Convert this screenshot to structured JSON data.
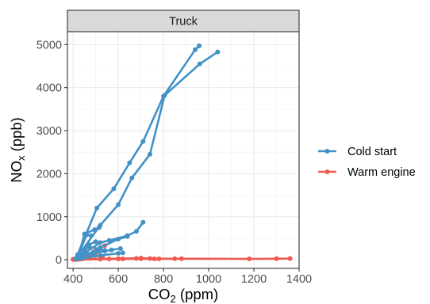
{
  "chart_data": {
    "type": "line",
    "panel": "Truck",
    "xlabel": {
      "main": "CO",
      "sub": "2",
      "rest": " (ppm)"
    },
    "ylabel": {
      "main": "NO",
      "sub": "x",
      "rest": " (ppb)"
    },
    "xlim": [
      375,
      1400
    ],
    "ylim": [
      -200,
      5300
    ],
    "xticks": [
      400,
      600,
      800,
      1000,
      1200,
      1400
    ],
    "yticks": [
      0,
      1000,
      2000,
      3000,
      4000,
      5000
    ],
    "grid": true,
    "legend_position": "right",
    "series": [
      {
        "name": "Cold start",
        "color": "#4292c6",
        "lines": [
          [
            [
              420,
              120
            ],
            [
              505,
              1200
            ],
            [
              580,
              1650
            ],
            [
              650,
              2250
            ],
            [
              710,
              2750
            ],
            [
              800,
              3800
            ],
            [
              940,
              4880
            ],
            [
              958,
              4970
            ]
          ],
          [
            [
              430,
              150
            ],
            [
              520,
              800
            ],
            [
              600,
              1280
            ],
            [
              660,
              1900
            ],
            [
              740,
              2450
            ],
            [
              805,
              3820
            ],
            [
              960,
              4550
            ],
            [
              1040,
              4830
            ]
          ],
          [
            [
              425,
              100
            ],
            [
              450,
              600
            ],
            [
              495,
              700
            ],
            [
              515,
              750
            ]
          ],
          [
            [
              420,
              70
            ],
            [
              460,
              580
            ],
            [
              480,
              560
            ]
          ],
          [
            [
              430,
              80
            ],
            [
              520,
              400
            ],
            [
              560,
              450
            ],
            [
              640,
              560
            ],
            [
              680,
              660
            ],
            [
              710,
              870
            ]
          ],
          [
            [
              440,
              60
            ],
            [
              520,
              280
            ],
            [
              600,
              480
            ],
            [
              640,
              540
            ]
          ],
          [
            [
              415,
              40
            ],
            [
              470,
              350
            ],
            [
              500,
              420
            ]
          ],
          [
            [
              430,
              50
            ],
            [
              490,
              150
            ],
            [
              540,
              200
            ],
            [
              570,
              230
            ],
            [
              610,
              260
            ]
          ],
          [
            [
              410,
              20
            ],
            [
              450,
              220
            ],
            [
              470,
              300
            ],
            [
              520,
              250
            ]
          ],
          [
            [
              420,
              30
            ],
            [
              460,
              140
            ],
            [
              500,
              180
            ],
            [
              540,
              220
            ]
          ],
          [
            [
              440,
              30
            ],
            [
              520,
              100
            ],
            [
              600,
              150
            ],
            [
              620,
              160
            ]
          ]
        ]
      },
      {
        "name": "Warm engine",
        "color": "#ef5a50",
        "lines": [
          [
            [
              400,
              10
            ],
            [
              600,
              20
            ],
            [
              760,
              20
            ],
            [
              880,
              25
            ],
            [
              1180,
              20
            ],
            [
              1300,
              25
            ],
            [
              1360,
              30
            ]
          ],
          [
            [
              420,
              10
            ],
            [
              560,
              20
            ],
            [
              680,
              30
            ],
            [
              740,
              30
            ],
            [
              850,
              25
            ]
          ],
          [
            [
              450,
              30
            ],
            [
              480,
              130
            ],
            [
              500,
              200
            ],
            [
              520,
              280
            ],
            [
              540,
              330
            ]
          ],
          [
            [
              440,
              20
            ],
            [
              470,
              120
            ],
            [
              490,
              180
            ]
          ],
          [
            [
              430,
              15
            ],
            [
              600,
              25
            ],
            [
              700,
              40
            ],
            [
              780,
              20
            ]
          ],
          [
            [
              410,
              5
            ],
            [
              520,
              15
            ],
            [
              620,
              20
            ],
            [
              700,
              25
            ]
          ],
          [
            [
              460,
              40
            ],
            [
              500,
              100
            ],
            [
              530,
              60
            ]
          ]
        ]
      }
    ]
  }
}
